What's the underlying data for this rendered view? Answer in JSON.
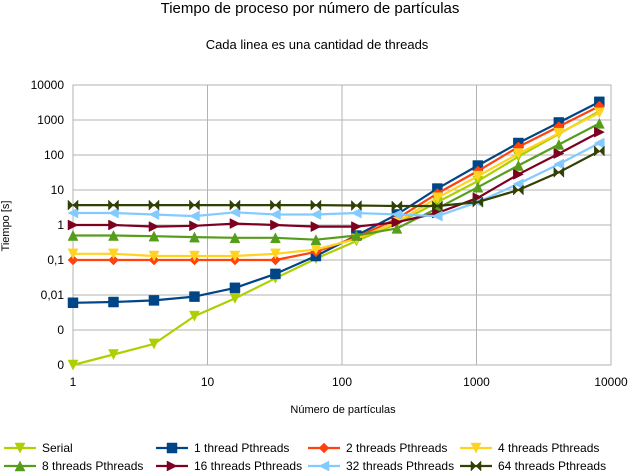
{
  "chart_data": {
    "type": "line",
    "title": "Tiempo de proceso por número de partículas",
    "subtitle": "Cada linea es una cantidad de threads",
    "xlabel": "Número de partículas",
    "ylabel": "Tiempo [s]",
    "x_scale": "log",
    "y_scale": "log",
    "xlim": [
      1,
      10000
    ],
    "x_ticks": [
      "1",
      "10",
      "100",
      "1000",
      "10000"
    ],
    "y_ticks": [
      "0",
      "0",
      "0,01",
      "0,1",
      "1",
      "10",
      "100",
      "1000",
      "10000"
    ],
    "grid": true,
    "legend_position": "bottom",
    "x": [
      1,
      2,
      4,
      8,
      16,
      32,
      64,
      128,
      256,
      512,
      1024,
      2048,
      4096,
      8192
    ],
    "series": [
      {
        "name": "Serial",
        "color": "#aecf00",
        "marker": "triangle-down",
        "values": [
          0.0001,
          0.0002,
          0.0004,
          0.0025,
          0.008,
          0.03,
          0.11,
          0.35,
          1.1,
          4.5,
          18,
          90,
          400,
          1800
        ]
      },
      {
        "name": "1 thread Pthreads",
        "color": "#004586",
        "marker": "square",
        "values": [
          0.006,
          0.0063,
          0.007,
          0.009,
          0.016,
          0.04,
          0.13,
          0.5,
          2.0,
          11,
          50,
          220,
          850,
          3300
        ]
      },
      {
        "name": "2 threads Pthreads",
        "color": "#ff420e",
        "marker": "diamond",
        "values": [
          0.1,
          0.1,
          0.1,
          0.1,
          0.1,
          0.1,
          0.17,
          0.45,
          1.5,
          8,
          35,
          170,
          650,
          2500
        ]
      },
      {
        "name": "4 threads Pthreads",
        "color": "#ffd320",
        "marker": "triangle-down",
        "values": [
          0.15,
          0.15,
          0.13,
          0.13,
          0.13,
          0.15,
          0.2,
          0.4,
          1.2,
          6,
          25,
          110,
          420,
          1600
        ]
      },
      {
        "name": "8 threads Pthreads",
        "color": "#579d1c",
        "marker": "triangle-up",
        "values": [
          0.5,
          0.5,
          0.48,
          0.45,
          0.43,
          0.43,
          0.38,
          0.5,
          0.8,
          3,
          12,
          50,
          200,
          800
        ]
      },
      {
        "name": "16 threads Pthreads",
        "color": "#7e0021",
        "marker": "triangle-right",
        "values": [
          1.0,
          1.0,
          0.9,
          0.95,
          1.1,
          1.0,
          0.9,
          0.9,
          1.2,
          2.2,
          6,
          28,
          110,
          450
        ]
      },
      {
        "name": "32 threads Pthreads",
        "color": "#83caff",
        "marker": "triangle-left",
        "values": [
          2.2,
          2.2,
          2.0,
          1.8,
          2.3,
          2.0,
          2.0,
          2.2,
          2.0,
          1.8,
          4.5,
          15,
          55,
          220
        ]
      },
      {
        "name": "64 threads Pthreads",
        "color": "#314004",
        "marker": "bowtie",
        "values": [
          3.7,
          3.7,
          3.7,
          3.7,
          3.7,
          3.7,
          3.7,
          3.6,
          3.5,
          3.5,
          4.5,
          10,
          32,
          130
        ]
      }
    ]
  }
}
